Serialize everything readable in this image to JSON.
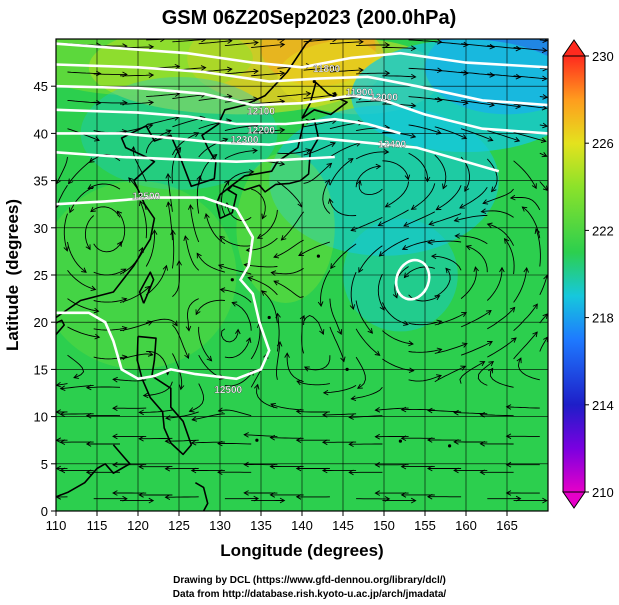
{
  "chart_data": {
    "type": "heatmap",
    "title": "GSM 06Z20Sep2023 (200.0hPa)",
    "xlabel": "Longitude (degrees)",
    "ylabel": "Latitude  (degrees)",
    "xlim": [
      110,
      170
    ],
    "ylim": [
      0,
      50
    ],
    "x_ticks": [
      110,
      115,
      120,
      125,
      130,
      135,
      140,
      145,
      150,
      155,
      160,
      165
    ],
    "y_ticks": [
      0,
      5,
      10,
      15,
      20,
      25,
      30,
      35,
      40,
      45
    ],
    "grid": true,
    "colorbar": {
      "range": [
        210,
        230
      ],
      "tick_labels": [
        "210",
        "214",
        "218",
        "222",
        "226",
        "230"
      ],
      "placement": "right"
    },
    "contour_labels": [
      {
        "text": "11800",
        "lon": 143,
        "lat": 46.5
      },
      {
        "text": "11900",
        "lon": 147,
        "lat": 44
      },
      {
        "text": "12000",
        "lon": 150,
        "lat": 43.5
      },
      {
        "text": "12100",
        "lon": 135,
        "lat": 42
      },
      {
        "text": "12200",
        "lon": 135,
        "lat": 40
      },
      {
        "text": "12300",
        "lon": 133,
        "lat": 39
      },
      {
        "text": "12400",
        "lon": 151,
        "lat": 38.5
      },
      {
        "text": "12500",
        "lon": 121,
        "lat": 33
      },
      {
        "text": "12500",
        "lon": 131,
        "lat": 12.5
      }
    ]
  },
  "credits": {
    "line1": "Drawing by DCL (https://www.gfd-dennou.org/library/dcl/)",
    "line2": "Data from http://database.rish.kyoto-u.ac.jp/arch/jmadata/"
  }
}
